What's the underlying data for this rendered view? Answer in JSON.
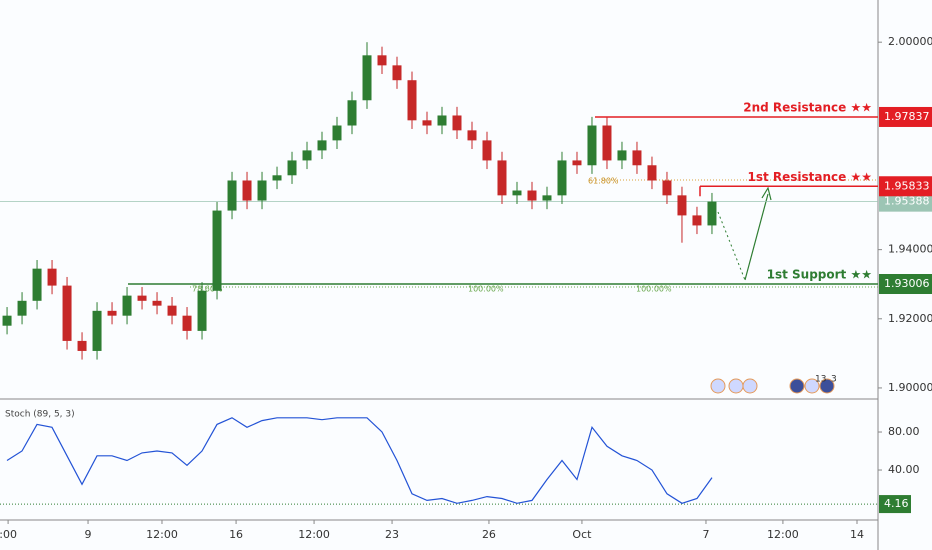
{
  "chart_data": {
    "type": "candlestick",
    "open": [
      1.918,
      1.9209,
      1.9252,
      1.9345,
      1.9296,
      1.9136,
      1.9107,
      1.9223,
      1.9209,
      1.9267,
      1.9252,
      1.9238,
      1.9209,
      1.9165,
      1.9281,
      1.9513,
      1.96,
      1.9542,
      1.96,
      1.9615,
      1.9658,
      1.9687,
      1.9716,
      1.9759,
      1.9832,
      1.9962,
      1.9933,
      1.989,
      1.9774,
      1.9759,
      1.9788,
      1.9745,
      1.9716,
      1.9658,
      1.9557,
      1.9571,
      1.9542,
      1.9557,
      1.9658,
      1.9644,
      1.9759,
      1.9658,
      1.9687,
      1.9644,
      1.96,
      1.9557,
      1.9499,
      1.947
    ],
    "high": [
      1.9234,
      1.9277,
      1.937,
      1.937,
      1.9321,
      1.9161,
      1.9248,
      1.9248,
      1.9292,
      1.9292,
      1.9277,
      1.9263,
      1.9234,
      1.9306,
      1.9538,
      1.9625,
      1.9625,
      1.9625,
      1.964,
      1.9683,
      1.9712,
      1.9741,
      1.9784,
      1.9857,
      2.0,
      1.9987,
      1.9958,
      1.9915,
      1.9799,
      1.9813,
      1.9813,
      1.977,
      1.9741,
      1.9683,
      1.9596,
      1.9596,
      1.9582,
      1.9683,
      1.9683,
      1.9784,
      1.9784,
      1.9712,
      1.9712,
      1.9669,
      1.9625,
      1.9582,
      1.9524,
      1.9564
    ],
    "low": [
      1.9155,
      1.9184,
      1.9227,
      1.9271,
      1.9111,
      1.9082,
      1.9082,
      1.9184,
      1.9184,
      1.9227,
      1.9213,
      1.9184,
      1.914,
      1.914,
      1.9256,
      1.9488,
      1.9517,
      1.9517,
      1.9575,
      1.959,
      1.9633,
      1.9662,
      1.9691,
      1.9734,
      1.9807,
      1.9908,
      1.9865,
      1.9749,
      1.9734,
      1.9734,
      1.972,
      1.9691,
      1.9633,
      1.9532,
      1.9532,
      1.9517,
      1.9517,
      1.9532,
      1.9619,
      1.9619,
      1.9633,
      1.9633,
      1.9619,
      1.9575,
      1.9532,
      1.942,
      1.9445,
      1.9445
    ],
    "close": [
      1.9209,
      1.9252,
      1.9345,
      1.9296,
      1.9136,
      1.9107,
      1.9223,
      1.9209,
      1.9267,
      1.9252,
      1.9238,
      1.9209,
      1.9165,
      1.9281,
      1.9513,
      1.96,
      1.9542,
      1.96,
      1.9615,
      1.9658,
      1.9687,
      1.9716,
      1.9759,
      1.9832,
      1.9962,
      1.9933,
      1.989,
      1.9774,
      1.9759,
      1.9788,
      1.9745,
      1.9716,
      1.9658,
      1.9557,
      1.9571,
      1.9542,
      1.9557,
      1.9658,
      1.9644,
      1.9759,
      1.9658,
      1.9687,
      1.9644,
      1.96,
      1.9557,
      1.9499,
      1.947,
      1.9539
    ],
    "color_up": "#2e7d32",
    "color_down": "#c62828",
    "xlim": [
      -0.47,
      58.07
    ],
    "xticks": [
      {
        "value": 0.07,
        "label": ":00"
      },
      {
        "value": 5.4,
        "label": "9"
      },
      {
        "value": 10.33,
        "label": "12:00"
      },
      {
        "value": 15.27,
        "label": "16"
      },
      {
        "value": 20.47,
        "label": "12:00"
      },
      {
        "value": 25.67,
        "label": "23"
      },
      {
        "value": 32.13,
        "label": "26"
      },
      {
        "value": 38.33,
        "label": "Oct"
      },
      {
        "value": 46.6,
        "label": "7"
      },
      {
        "value": 51.73,
        "label": "12:00"
      },
      {
        "value": 56.67,
        "label": "14"
      }
    ],
    "ylim": [
      1.8968,
      2.0122
    ],
    "yticks": [
      {
        "value": 2.0,
        "label": "2.00000"
      },
      {
        "value": 1.94,
        "label": "1.94000"
      },
      {
        "value": 1.92,
        "label": "1.92000"
      },
      {
        "value": 1.9,
        "label": "1.90000"
      }
    ],
    "levels": [
      {
        "name": "2nd Resistance ★★",
        "value": 1.97837,
        "color": "#e31e24"
      },
      {
        "name": "1st Resistance ★★",
        "value": 1.95833,
        "color": "#e31e24"
      },
      {
        "name": "1st Support ★★",
        "value": 1.93006,
        "color": "#2e7d32"
      }
    ],
    "current_price": {
      "value": 1.95388,
      "color": "#9cc5b4"
    },
    "fib_labels": [
      "61.80%",
      "78.60%",
      "100.00%",
      "100.00%"
    ],
    "events": [
      "13",
      "3"
    ],
    "indicator": {
      "type": "line",
      "name": "Stoch (89, 5, 3)",
      "color": "#2353d6",
      "values": [
        50,
        60,
        88,
        85,
        55,
        25,
        55,
        55,
        50,
        58,
        60,
        58,
        45,
        60,
        88,
        95,
        85,
        92,
        95,
        95,
        95,
        93,
        95,
        95,
        95,
        80,
        50,
        15,
        8,
        10,
        5,
        8,
        12,
        10,
        5,
        8,
        30,
        50,
        30,
        85,
        65,
        55,
        50,
        40,
        15,
        5,
        10,
        32
      ],
      "ylim": [
        -12.6,
        113.7
      ],
      "yticks": [
        {
          "value": 80,
          "label": "80.00"
        },
        {
          "value": 40,
          "label": "40.00"
        }
      ],
      "marker": 4.16,
      "marker_color": "#2e7d32"
    }
  }
}
